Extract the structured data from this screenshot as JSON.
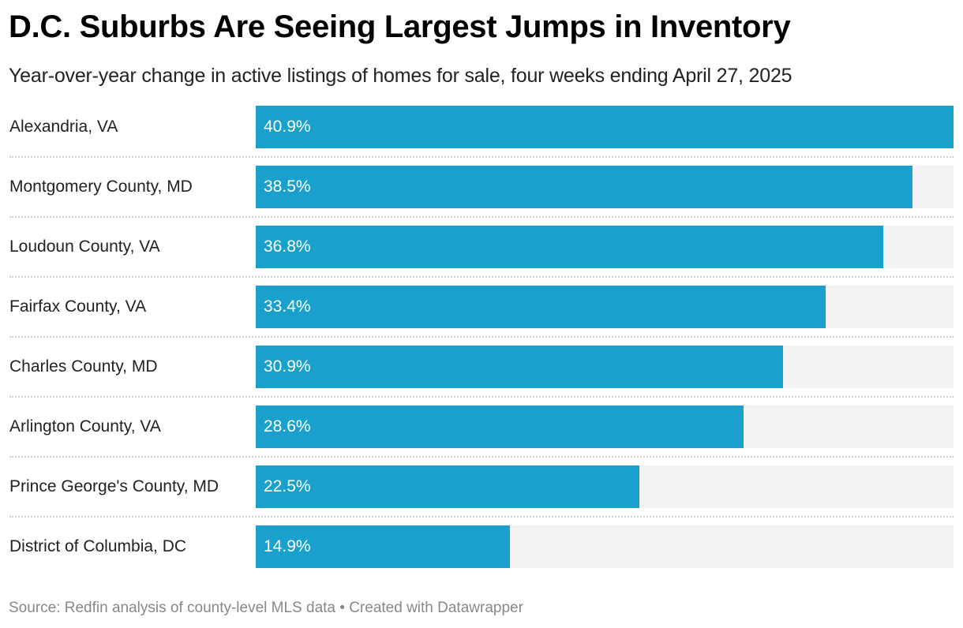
{
  "chart_data": {
    "type": "bar",
    "orientation": "horizontal",
    "title": "D.C. Suburbs Are Seeing Largest Jumps in Inventory",
    "subtitle": "Year-over-year change in active listings of homes for sale, four weeks ending April 27, 2025",
    "categories": [
      "Alexandria, VA",
      "Montgomery County, MD",
      "Loudoun County, VA",
      "Fairfax County, VA",
      "Charles County, MD",
      "Arlington County, VA",
      "Prince George's County, MD",
      "District of Columbia, DC"
    ],
    "values": [
      40.9,
      38.5,
      36.8,
      33.4,
      30.9,
      28.6,
      22.5,
      14.9
    ],
    "value_labels": [
      "40.9%",
      "38.5%",
      "36.8%",
      "33.4%",
      "30.9%",
      "28.6%",
      "22.5%",
      "14.9%"
    ],
    "xlim": [
      0,
      40.9
    ],
    "unit": "%",
    "xlabel": "",
    "ylabel": "",
    "grid": false,
    "legend": "none",
    "colors": {
      "bar": "#1aa0cc",
      "track": "#f2f2f2",
      "separator": "#d0d0d0"
    },
    "footer": "Source: Redfin analysis of county-level MLS data • Created with Datawrapper"
  }
}
